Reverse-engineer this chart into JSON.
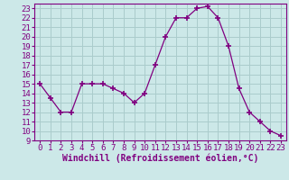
{
  "hours": [
    0,
    1,
    2,
    3,
    4,
    5,
    6,
    7,
    8,
    9,
    10,
    11,
    12,
    13,
    14,
    15,
    16,
    17,
    18,
    19,
    20,
    21,
    22,
    23
  ],
  "values": [
    15,
    13.5,
    12,
    12,
    15,
    15,
    15,
    14.5,
    14,
    13,
    14,
    17,
    20,
    22,
    22,
    23,
    23.2,
    22,
    19,
    14.5,
    12,
    11,
    10,
    9.5
  ],
  "line_color": "#800080",
  "marker": "+",
  "marker_size": 4,
  "marker_linewidth": 1.2,
  "bg_color": "#cce8e8",
  "grid_color": "#aacccc",
  "xlabel": "Windchill (Refroidissement éolien,°C)",
  "xlabel_fontsize": 7,
  "tick_fontsize": 6.5,
  "ylim": [
    9,
    23.5
  ],
  "xlim": [
    -0.5,
    23.5
  ],
  "yticks": [
    9,
    10,
    11,
    12,
    13,
    14,
    15,
    16,
    17,
    18,
    19,
    20,
    21,
    22,
    23
  ],
  "xticks": [
    0,
    1,
    2,
    3,
    4,
    5,
    6,
    7,
    8,
    9,
    10,
    11,
    12,
    13,
    14,
    15,
    16,
    17,
    18,
    19,
    20,
    21,
    22,
    23
  ],
  "linewidth": 0.9,
  "spine_color": "#800080",
  "label_color": "#800080"
}
